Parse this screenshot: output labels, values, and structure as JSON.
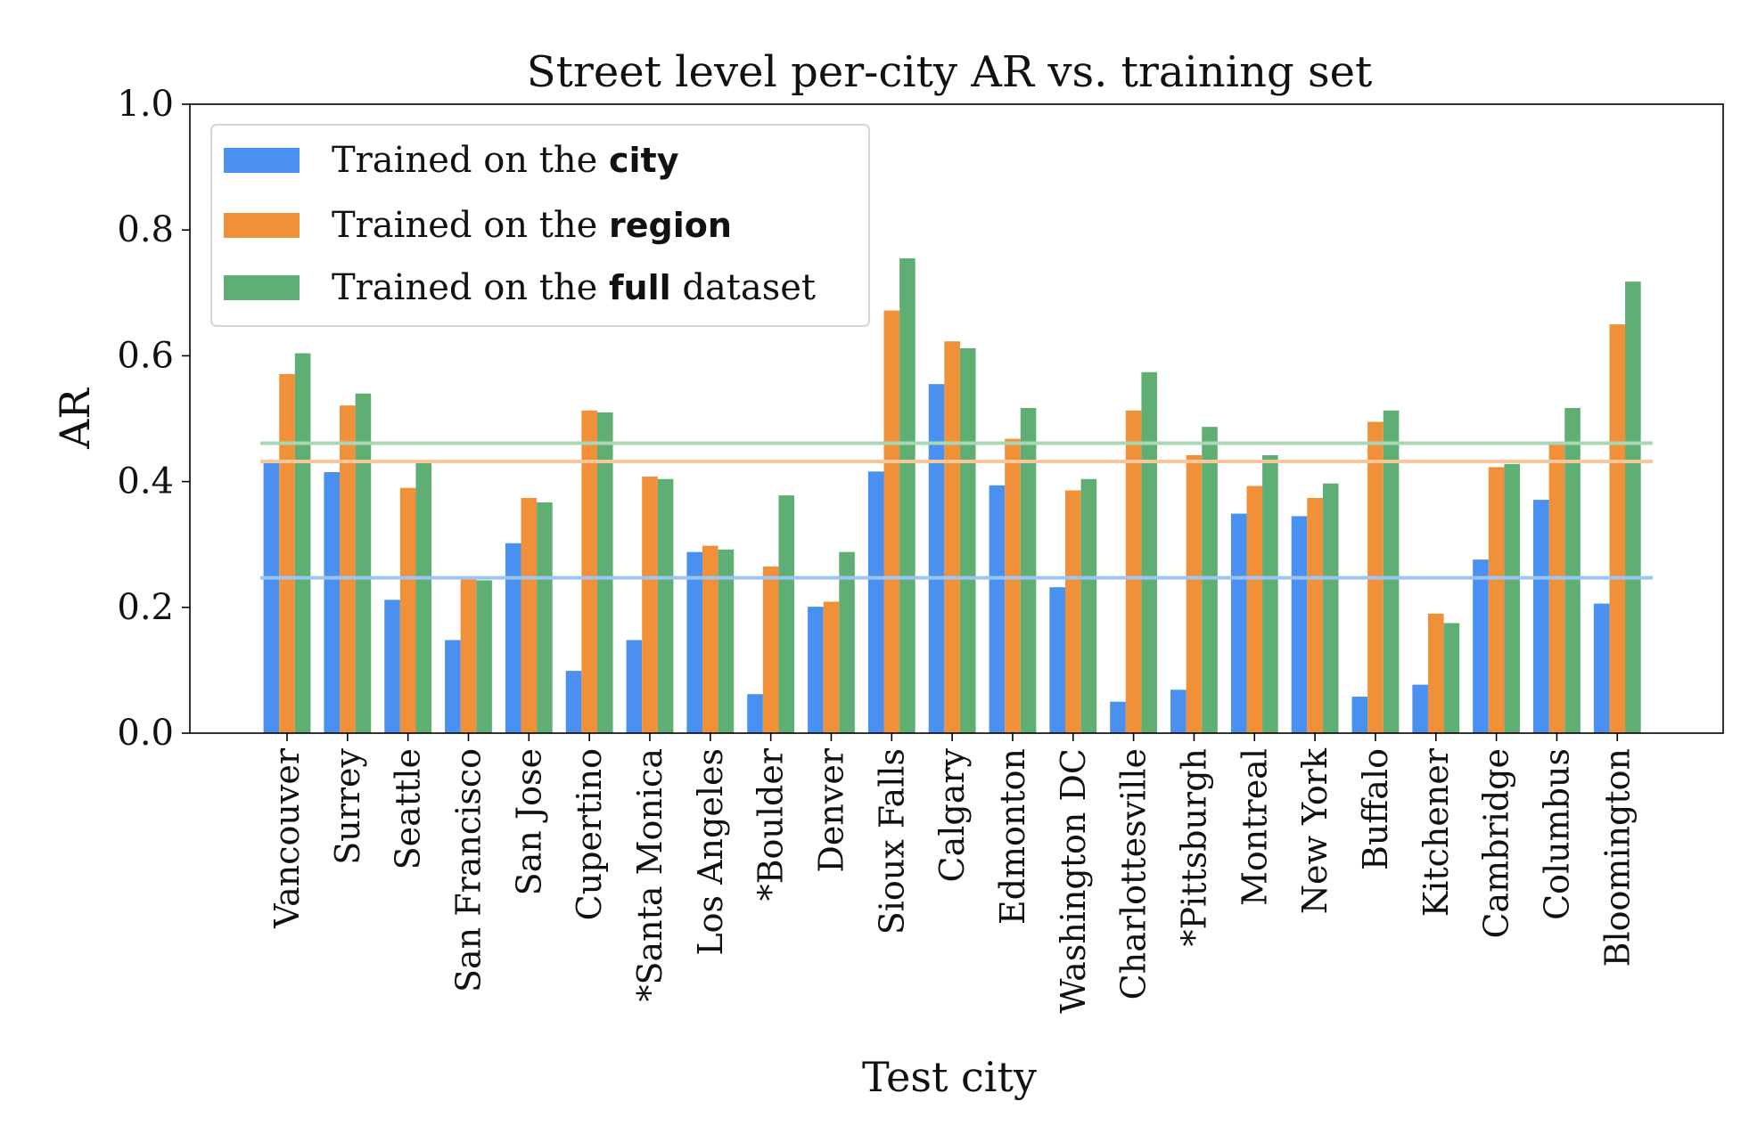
{
  "chart_data": {
    "type": "bar",
    "title": "Street level per-city AR vs. training set",
    "xlabel": "Test city",
    "ylabel": "AR",
    "ylim": [
      0.0,
      1.0
    ],
    "yticks": [
      "0.0",
      "0.2",
      "0.4",
      "0.6",
      "0.8",
      "1.0"
    ],
    "grid": false,
    "legend_position": "top-left",
    "categories": [
      "Vancouver",
      "Surrey",
      "Seattle",
      "San Francisco",
      "San Jose",
      "Cupertino",
      "*Santa Monica",
      "Los Angeles",
      "*Boulder",
      "Denver",
      "Sioux Falls",
      "Calgary",
      "Edmonton",
      "Washington DC",
      "Charlottesville",
      "*Pittsburgh",
      "Montreal",
      "New York",
      "Buffalo",
      "Kitchener",
      "Cambridge",
      "Columbus",
      "Bloomington"
    ],
    "series": [
      {
        "legend_prefix": "Trained on the ",
        "legend_bold": "city",
        "legend_suffix": "",
        "color": "#4a90f0",
        "values": [
          0.43,
          0.415,
          0.212,
          0.148,
          0.302,
          0.099,
          0.148,
          0.288,
          0.062,
          0.201,
          0.416,
          0.555,
          0.394,
          0.232,
          0.05,
          0.069,
          0.349,
          0.345,
          0.058,
          0.077,
          0.276,
          0.371,
          0.206
        ]
      },
      {
        "legend_prefix": "Trained on the ",
        "legend_bold": "region",
        "legend_suffix": "",
        "color": "#f0913a",
        "values": [
          0.571,
          0.521,
          0.39,
          0.249,
          0.374,
          0.513,
          0.408,
          0.298,
          0.265,
          0.209,
          0.672,
          0.623,
          0.468,
          0.386,
          0.513,
          0.442,
          0.393,
          0.374,
          0.495,
          0.19,
          0.423,
          0.461,
          0.65
        ]
      },
      {
        "legend_prefix": "Trained on the ",
        "legend_bold": "full",
        "legend_suffix": " dataset",
        "color": "#5fae73",
        "values": [
          0.604,
          0.54,
          0.43,
          0.243,
          0.367,
          0.51,
          0.404,
          0.292,
          0.378,
          0.288,
          0.755,
          0.612,
          0.517,
          0.404,
          0.574,
          0.487,
          0.442,
          0.397,
          0.513,
          0.175,
          0.428,
          0.517,
          0.718
        ]
      }
    ],
    "reference_lines": [
      {
        "value": 0.247,
        "color": "#9cc4f7"
      },
      {
        "value": 0.432,
        "color": "#f7c69a"
      },
      {
        "value": 0.461,
        "color": "#a9d6b3"
      }
    ]
  }
}
